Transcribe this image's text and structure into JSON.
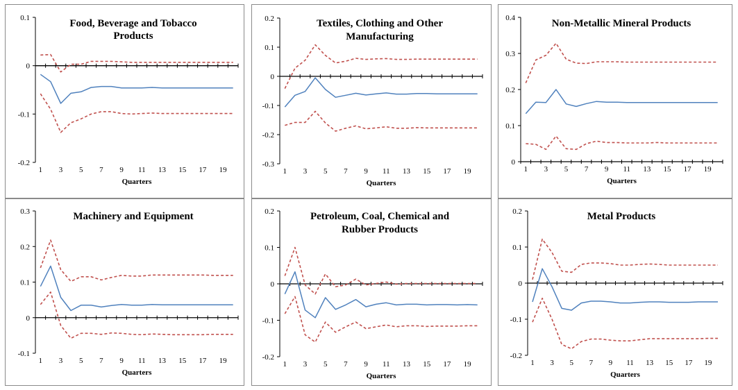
{
  "colors": {
    "response": "#4f81bd",
    "bands": "#c0504d"
  },
  "chart_data": [
    {
      "type": "line",
      "title": [
        "Food, Beverage and Tobacco",
        "Products"
      ],
      "xlabel": "Quarters",
      "x": [
        1,
        2,
        3,
        4,
        5,
        6,
        7,
        8,
        9,
        10,
        11,
        12,
        13,
        14,
        15,
        16,
        17,
        18,
        19,
        20
      ],
      "x_tick_labels": [
        "1",
        "3",
        "5",
        "7",
        "9",
        "11",
        "13",
        "15",
        "17",
        "19"
      ],
      "ylim": [
        -0.2,
        0.1
      ],
      "y_ticks": [
        "-0.2",
        "-0.1",
        "0",
        "0.1"
      ],
      "series": [
        {
          "style": "solid",
          "values": [
            -0.018,
            -0.033,
            -0.078,
            -0.057,
            -0.054,
            -0.045,
            -0.043,
            -0.043,
            -0.046,
            -0.046,
            -0.046,
            -0.045,
            -0.046,
            -0.046,
            -0.046,
            -0.046,
            -0.046,
            -0.046,
            -0.046,
            -0.046
          ]
        },
        {
          "style": "dashed",
          "values": [
            0.022,
            0.023,
            -0.013,
            0.003,
            0.003,
            0.009,
            0.009,
            0.009,
            0.008,
            0.007,
            0.007,
            0.007,
            0.007,
            0.007,
            0.007,
            0.007,
            0.007,
            0.007,
            0.007,
            0.007
          ]
        },
        {
          "style": "dashed",
          "values": [
            -0.058,
            -0.09,
            -0.138,
            -0.118,
            -0.11,
            -0.1,
            -0.095,
            -0.095,
            -0.099,
            -0.1,
            -0.099,
            -0.098,
            -0.099,
            -0.099,
            -0.099,
            -0.099,
            -0.099,
            -0.099,
            -0.099,
            -0.099
          ]
        }
      ]
    },
    {
      "type": "line",
      "title": [
        "Textiles, Clothing and Other",
        "Manufacturing"
      ],
      "xlabel": "Quarters",
      "x": [
        1,
        2,
        3,
        4,
        5,
        6,
        7,
        8,
        9,
        10,
        11,
        12,
        13,
        14,
        15,
        16,
        17,
        18,
        19,
        20
      ],
      "x_tick_labels": [
        "1",
        "3",
        "5",
        "7",
        "9",
        "11",
        "13",
        "15",
        "17",
        "19"
      ],
      "ylim": [
        -0.3,
        0.2
      ],
      "y_ticks": [
        "-0.3",
        "-0.2",
        "-0.1",
        "0",
        "0.1",
        "0.2"
      ],
      "series": [
        {
          "style": "solid",
          "values": [
            -0.105,
            -0.065,
            -0.052,
            -0.005,
            -0.045,
            -0.072,
            -0.065,
            -0.058,
            -0.064,
            -0.06,
            -0.057,
            -0.061,
            -0.061,
            -0.059,
            -0.059,
            -0.06,
            -0.06,
            -0.06,
            -0.06,
            -0.06
          ]
        },
        {
          "style": "dashed",
          "values": [
            -0.042,
            0.028,
            0.055,
            0.108,
            0.072,
            0.046,
            0.052,
            0.062,
            0.058,
            0.06,
            0.061,
            0.058,
            0.058,
            0.059,
            0.059,
            0.059,
            0.059,
            0.059,
            0.059,
            0.059
          ]
        },
        {
          "style": "dashed",
          "values": [
            -0.168,
            -0.158,
            -0.158,
            -0.12,
            -0.16,
            -0.188,
            -0.178,
            -0.17,
            -0.18,
            -0.177,
            -0.173,
            -0.178,
            -0.178,
            -0.176,
            -0.177,
            -0.177,
            -0.177,
            -0.177,
            -0.177,
            -0.177
          ]
        }
      ]
    },
    {
      "type": "line",
      "title": [
        "Non-Metallic Mineral Products"
      ],
      "xlabel": "Quarters",
      "x": [
        1,
        2,
        3,
        4,
        5,
        6,
        7,
        8,
        9,
        10,
        11,
        12,
        13,
        14,
        15,
        16,
        17,
        18,
        19,
        20
      ],
      "x_tick_labels": [
        "1",
        "3",
        "5",
        "7",
        "9",
        "11",
        "13",
        "15",
        "17",
        "19"
      ],
      "ylim": [
        0,
        0.4
      ],
      "y_ticks": [
        "0",
        "0.1",
        "0.2",
        "0.3",
        "0.4"
      ],
      "series": [
        {
          "style": "solid",
          "values": [
            0.133,
            0.165,
            0.164,
            0.2,
            0.16,
            0.153,
            0.161,
            0.167,
            0.165,
            0.165,
            0.164,
            0.164,
            0.164,
            0.164,
            0.164,
            0.164,
            0.164,
            0.164,
            0.164,
            0.164
          ]
        },
        {
          "style": "dashed",
          "values": [
            0.218,
            0.282,
            0.295,
            0.328,
            0.284,
            0.273,
            0.272,
            0.277,
            0.277,
            0.277,
            0.276,
            0.276,
            0.276,
            0.276,
            0.276,
            0.276,
            0.276,
            0.276,
            0.276,
            0.276
          ]
        },
        {
          "style": "dashed",
          "values": [
            0.05,
            0.048,
            0.034,
            0.071,
            0.036,
            0.034,
            0.05,
            0.057,
            0.053,
            0.053,
            0.052,
            0.052,
            0.052,
            0.053,
            0.052,
            0.052,
            0.052,
            0.052,
            0.052,
            0.052
          ]
        }
      ]
    },
    {
      "type": "line",
      "title": [
        "Machinery and Equipment"
      ],
      "xlabel": "Quarters",
      "x": [
        1,
        2,
        3,
        4,
        5,
        6,
        7,
        8,
        9,
        10,
        11,
        12,
        13,
        14,
        15,
        16,
        17,
        18,
        19,
        20
      ],
      "x_tick_labels": [
        "1",
        "3",
        "5",
        "7",
        "9",
        "11",
        "13",
        "15",
        "17",
        "19"
      ],
      "ylim": [
        -0.1,
        0.3
      ],
      "y_ticks": [
        "-0.1",
        "0",
        "0.1",
        "0.2",
        "0.3"
      ],
      "series": [
        {
          "style": "solid",
          "values": [
            0.088,
            0.145,
            0.057,
            0.02,
            0.035,
            0.035,
            0.03,
            0.034,
            0.037,
            0.035,
            0.035,
            0.037,
            0.036,
            0.036,
            0.036,
            0.036,
            0.036,
            0.036,
            0.036,
            0.036
          ]
        },
        {
          "style": "dashed",
          "values": [
            0.14,
            0.218,
            0.135,
            0.102,
            0.115,
            0.115,
            0.106,
            0.113,
            0.119,
            0.117,
            0.117,
            0.12,
            0.12,
            0.12,
            0.12,
            0.12,
            0.12,
            0.119,
            0.119,
            0.119
          ]
        },
        {
          "style": "dashed",
          "values": [
            0.037,
            0.072,
            -0.022,
            -0.058,
            -0.044,
            -0.044,
            -0.047,
            -0.043,
            -0.044,
            -0.047,
            -0.048,
            -0.046,
            -0.047,
            -0.048,
            -0.048,
            -0.048,
            -0.048,
            -0.047,
            -0.047,
            -0.047
          ]
        }
      ]
    },
    {
      "type": "line",
      "title": [
        "Petroleum, Coal, Chemical and",
        "Rubber Products"
      ],
      "xlabel": "Quarters",
      "x": [
        1,
        2,
        3,
        4,
        5,
        6,
        7,
        8,
        9,
        10,
        11,
        12,
        13,
        14,
        15,
        16,
        17,
        18,
        19,
        20
      ],
      "x_tick_labels": [
        "1",
        "3",
        "5",
        "7",
        "9",
        "11",
        "13",
        "15",
        "17",
        "19"
      ],
      "ylim": [
        -0.2,
        0.2
      ],
      "y_ticks": [
        "-0.2",
        "-0.1",
        "0",
        "0.1",
        "0.2"
      ],
      "series": [
        {
          "style": "solid",
          "values": [
            -0.028,
            0.033,
            -0.072,
            -0.093,
            -0.038,
            -0.07,
            -0.058,
            -0.043,
            -0.063,
            -0.056,
            -0.052,
            -0.058,
            -0.056,
            -0.056,
            -0.058,
            -0.057,
            -0.057,
            -0.058,
            -0.057,
            -0.058
          ]
        },
        {
          "style": "dashed",
          "values": [
            0.022,
            0.1,
            -0.003,
            -0.028,
            0.027,
            -0.008,
            -0.003,
            0.013,
            -0.003,
            0.001,
            0.005,
            -0.001,
            0.001,
            0.001,
            0.001,
            0.001,
            0.001,
            0.001,
            0.001,
            0.001
          ]
        },
        {
          "style": "dashed",
          "values": [
            -0.082,
            -0.035,
            -0.14,
            -0.16,
            -0.105,
            -0.133,
            -0.118,
            -0.105,
            -0.123,
            -0.118,
            -0.113,
            -0.118,
            -0.115,
            -0.115,
            -0.117,
            -0.116,
            -0.116,
            -0.116,
            -0.115,
            -0.115
          ]
        }
      ]
    },
    {
      "type": "line",
      "title": [
        "Metal Products"
      ],
      "xlabel": "Quarters",
      "x": [
        1,
        2,
        3,
        4,
        5,
        6,
        7,
        8,
        9,
        10,
        11,
        12,
        13,
        14,
        15,
        16,
        17,
        18,
        19,
        20
      ],
      "x_tick_labels": [
        "1",
        "3",
        "5",
        "7",
        "9",
        "11",
        "13",
        "15",
        "17",
        "19"
      ],
      "ylim": [
        -0.2,
        0.2
      ],
      "y_ticks": [
        "-0.2",
        "-0.1",
        "0",
        "0.1",
        "0.2"
      ],
      "series": [
        {
          "style": "solid",
          "values": [
            -0.052,
            0.04,
            -0.01,
            -0.07,
            -0.075,
            -0.055,
            -0.05,
            -0.05,
            -0.052,
            -0.055,
            -0.055,
            -0.053,
            -0.052,
            -0.052,
            -0.053,
            -0.053,
            -0.053,
            -0.052,
            -0.052,
            -0.052
          ]
        },
        {
          "style": "dashed",
          "values": [
            0.01,
            0.122,
            0.085,
            0.033,
            0.03,
            0.052,
            0.056,
            0.056,
            0.054,
            0.05,
            0.05,
            0.052,
            0.053,
            0.052,
            0.05,
            0.05,
            0.05,
            0.05,
            0.05,
            0.05
          ]
        },
        {
          "style": "dashed",
          "values": [
            -0.108,
            -0.042,
            -0.1,
            -0.17,
            -0.182,
            -0.162,
            -0.155,
            -0.155,
            -0.158,
            -0.16,
            -0.16,
            -0.157,
            -0.154,
            -0.154,
            -0.154,
            -0.154,
            -0.154,
            -0.154,
            -0.153,
            -0.153
          ]
        }
      ]
    }
  ]
}
